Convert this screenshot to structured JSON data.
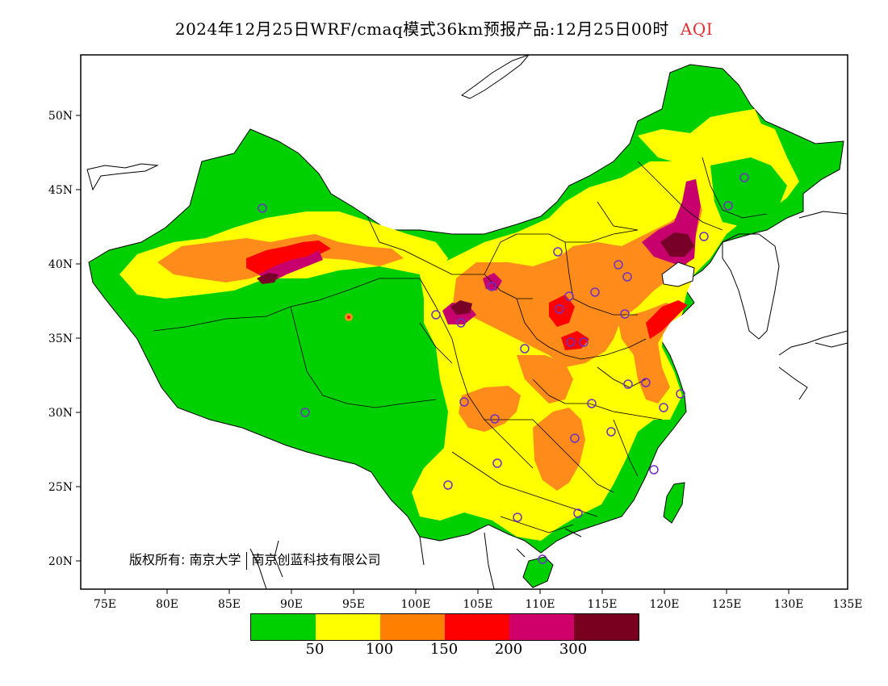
{
  "title": {
    "text": "2024年12月25日WRF/cmaq模式36km预报产品:12月25日00时",
    "variable": "AQI",
    "variable_color": "#e03030"
  },
  "axes": {
    "lon_ticks": [
      "75E",
      "80E",
      "85E",
      "90E",
      "95E",
      "100E",
      "105E",
      "110E",
      "115E",
      "120E",
      "125E",
      "130E",
      "135E"
    ],
    "lat_ticks": [
      "50N",
      "45N",
      "40N",
      "35N",
      "30N",
      "25N",
      "20N"
    ]
  },
  "copyright": {
    "prefix": "版权所有:",
    "org1": "南京大学",
    "org2": "南京创蓝科技有限公司"
  },
  "legend": {
    "colors": [
      "#00d000",
      "#ffff00",
      "#ff8000",
      "#ff0000",
      "#d0006a",
      "#7a0020"
    ],
    "labels": [
      "50",
      "100",
      "150",
      "200",
      "300"
    ]
  },
  "map_colors": {
    "green": "#00d000",
    "yellow": "#ffff00",
    "orange": "#ff8c1a",
    "red": "#ff0000",
    "magenta": "#c8006e",
    "maroon": "#780028",
    "site_marker": "#7030c0"
  }
}
